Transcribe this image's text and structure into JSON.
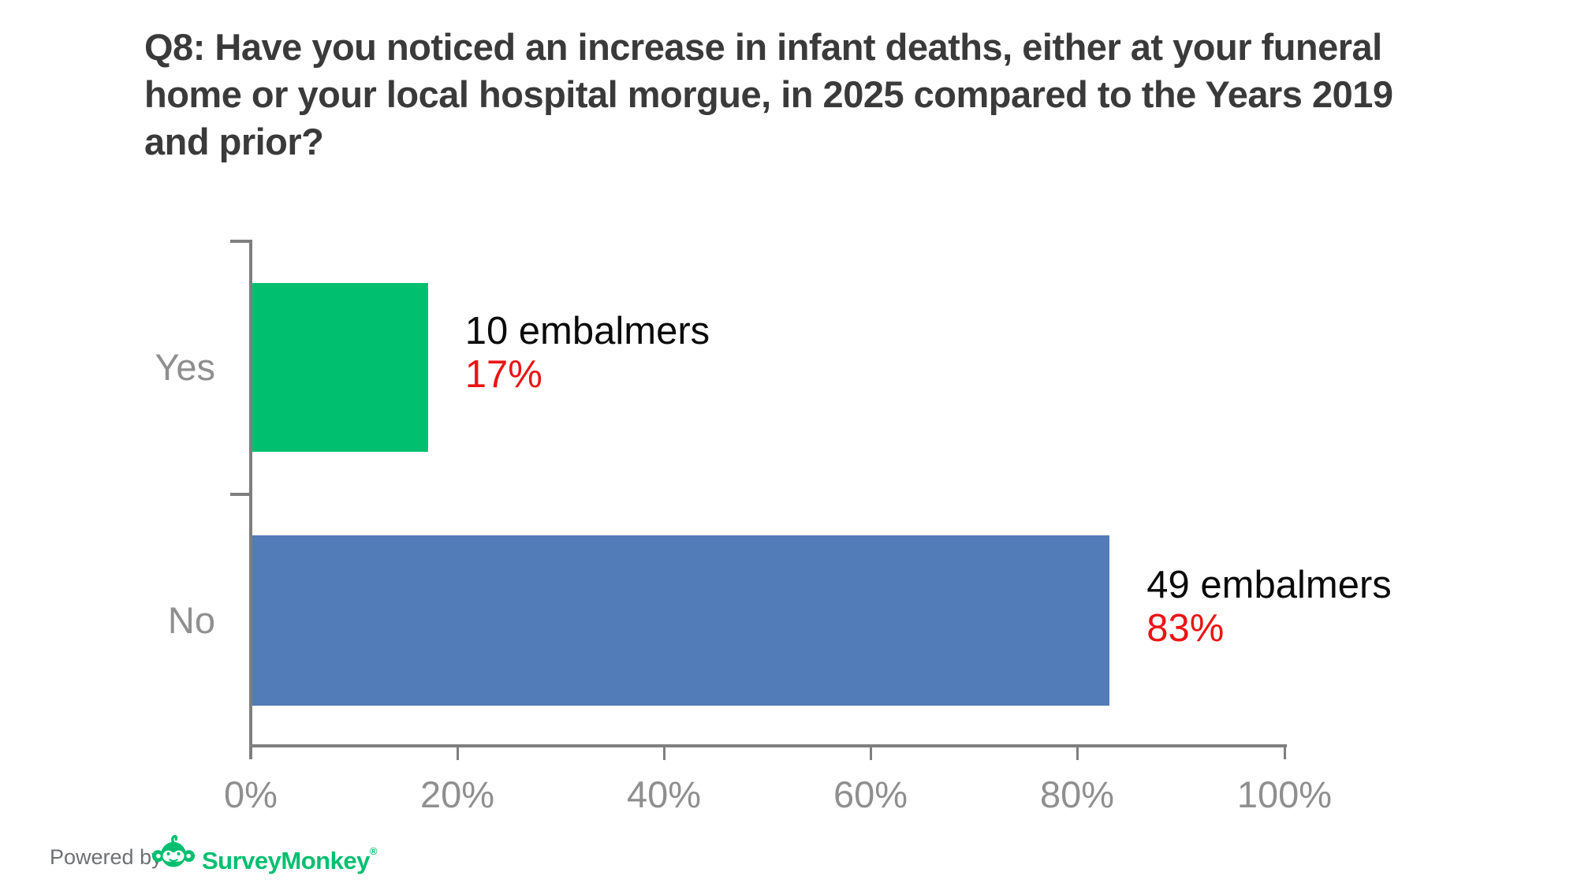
{
  "title": {
    "lines": [
      "Q8: Have you noticed an increase in infant deaths, either at your funeral",
      "home or your local hospital morgue, in 2025 compared to the Years 2019",
      "and prior?"
    ],
    "color": "#3A3A3A"
  },
  "chart_data": {
    "type": "bar",
    "orientation": "horizontal",
    "question": "Q8: Have you noticed an increase in infant deaths, either at your funeral home or your local hospital morgue, in 2025 compared to the Years 2019 and prior?",
    "categories": [
      "Yes",
      "No"
    ],
    "rows": [
      {
        "category": "Yes",
        "percent": 17,
        "count": 10,
        "count_label": "10 embalmers",
        "percent_label": "17%",
        "bar_color": "#00BF6F"
      },
      {
        "category": "No",
        "percent": 83,
        "count": 49,
        "count_label": "49 embalmers",
        "percent_label": "83%",
        "bar_color": "#527CB8"
      }
    ],
    "x_ticks": [
      "0%",
      "20%",
      "40%",
      "60%",
      "80%",
      "100%"
    ],
    "xlim": [
      0,
      100
    ],
    "grid": false,
    "legend": false,
    "axis_color": "#7F7F7F",
    "category_label_color": "#8F8F8F",
    "tick_label_color": "#8F8F8F",
    "count_label_color": "#0A0A0A",
    "percent_label_color": "#EB1414"
  },
  "footer": {
    "powered_by": "Powered by",
    "brand": "SurveyMonkey",
    "registered_mark": "®",
    "brand_color": "#00BF6F",
    "powered_by_color": "#6E7073"
  }
}
